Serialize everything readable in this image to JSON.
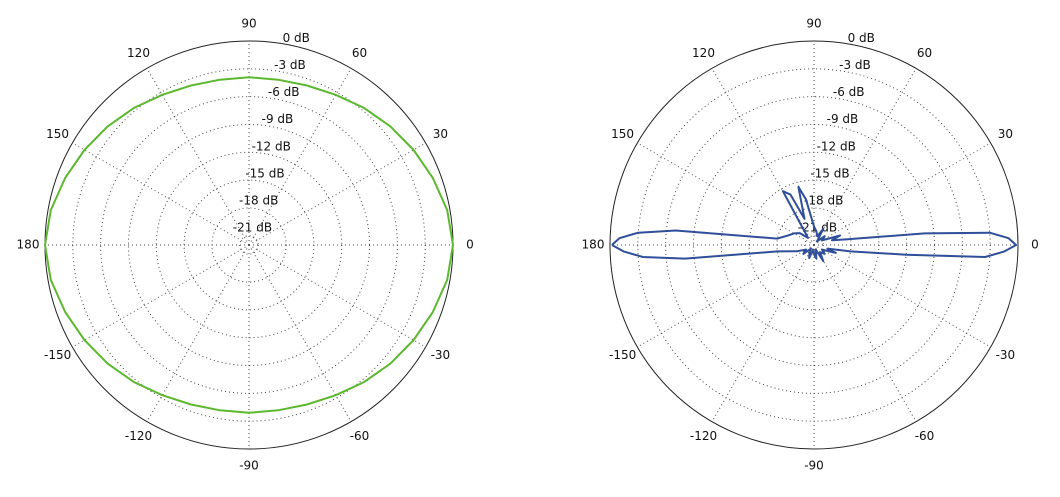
{
  "chart_data": [
    {
      "type": "polar",
      "theta": [
        -180,
        -170,
        -160,
        -150,
        -140,
        -130,
        -120,
        -110,
        -100,
        -90,
        -80,
        -70,
        -60,
        -50,
        -40,
        -30,
        -20,
        -10,
        0,
        10,
        20,
        30,
        40,
        50,
        60,
        70,
        80,
        90,
        100,
        110,
        120,
        130,
        140,
        150,
        160,
        170,
        180
      ],
      "series": [
        {
          "color": "#5cb82e",
          "values": [
            0,
            -0.3,
            -0.9,
            -1.5,
            -2.1,
            -2.7,
            -3.3,
            -3.7,
            -3.9,
            -3.9,
            -3.9,
            -3.7,
            -3.3,
            -2.7,
            -2.1,
            -1.5,
            -0.9,
            -0.3,
            0,
            -0.3,
            -0.9,
            -1.5,
            -2.1,
            -2.7,
            -3.3,
            -3.7,
            -3.9,
            -3.9,
            -3.9,
            -3.7,
            -3.3,
            -2.7,
            -2.1,
            -1.5,
            -0.9,
            -0.3,
            0
          ]
        }
      ],
      "rlim": [
        -22,
        0
      ],
      "rticks": [
        {
          "value": 0,
          "label": "0 dB"
        },
        {
          "value": -3,
          "label": "-3 dB"
        },
        {
          "value": -6,
          "label": "-6 dB"
        },
        {
          "value": -9,
          "label": "-9 dB"
        },
        {
          "value": -12,
          "label": "-12 dB"
        },
        {
          "value": -15,
          "label": "-15 dB"
        },
        {
          "value": -18,
          "label": "-18 dB"
        },
        {
          "value": -21,
          "label": "-21 dB"
        }
      ],
      "thetaticks": [
        0,
        30,
        60,
        90,
        120,
        150,
        180,
        -150,
        -120,
        -90,
        -60,
        -30
      ]
    },
    {
      "type": "polar",
      "theta": [
        -180,
        -178,
        -176,
        -174,
        -170,
        -160,
        -150,
        -140,
        -130,
        -120,
        -110,
        -100,
        -90,
        -80,
        -70,
        -60,
        -50,
        -40,
        -30,
        -20,
        -15,
        -10,
        -6,
        -4,
        -2,
        0,
        2,
        4,
        6,
        10,
        15,
        20,
        30,
        40,
        50,
        60,
        70,
        80,
        90,
        100,
        105,
        110,
        115,
        120,
        130,
        140,
        150,
        160,
        170,
        174,
        176,
        178,
        180
      ],
      "series": [
        {
          "color": "#2f4f9a",
          "values": [
            -0.2,
            -1.5,
            -3.5,
            -8,
            -18,
            -20,
            -21,
            -20.5,
            -21.5,
            -21,
            -20.5,
            -21.5,
            -21,
            -20.5,
            -21.5,
            -20,
            -21,
            -20.5,
            -21,
            -19.5,
            -20.5,
            -18,
            -12,
            -3.5,
            -1.5,
            -0.2,
            -1,
            -3,
            -10,
            -18.5,
            -20,
            -19,
            -21,
            -20.5,
            -21.5,
            -20,
            -21,
            -20.5,
            -20,
            -17,
            -15.5,
            -19,
            -16,
            -15.3,
            -21,
            -20,
            -19.5,
            -19,
            -18,
            -7,
            -3,
            -1,
            -0.2
          ]
        }
      ],
      "rlim": [
        -22,
        0
      ],
      "rticks": [
        {
          "value": 0,
          "label": "0 dB"
        },
        {
          "value": -3,
          "label": "-3 dB"
        },
        {
          "value": -6,
          "label": "-6 dB"
        },
        {
          "value": -9,
          "label": "-9 dB"
        },
        {
          "value": -12,
          "label": "-12 dB"
        },
        {
          "value": -15,
          "label": "-15 dB"
        },
        {
          "value": -18,
          "label": "-18 dB"
        },
        {
          "value": -21,
          "label": "-21 dB"
        }
      ],
      "thetaticks": [
        0,
        30,
        60,
        90,
        120,
        150,
        180,
        -150,
        -120,
        -90,
        -60,
        -30
      ]
    }
  ]
}
